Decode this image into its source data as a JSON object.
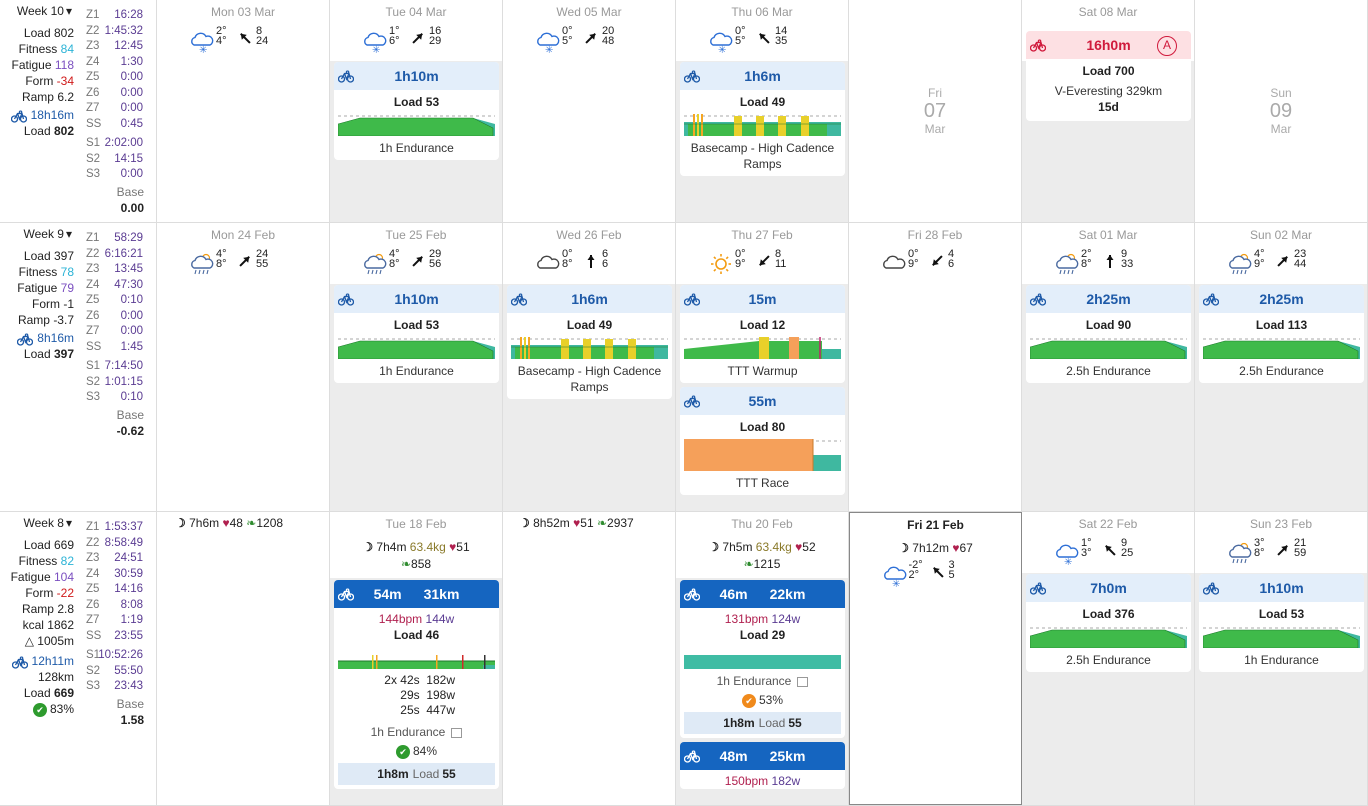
{
  "weeks": [
    {
      "title": "Week 10",
      "load": "802",
      "fitness": "84",
      "fatigue": "118",
      "form": "-34",
      "ramp": "6.2",
      "ride_time": "18h16m",
      "ride_load": "802",
      "zones": [
        [
          "Z1",
          "16:28"
        ],
        [
          "Z2",
          "1:45:32"
        ],
        [
          "Z3",
          "12:45"
        ],
        [
          "Z4",
          "1:30"
        ],
        [
          "Z5",
          "0:00"
        ],
        [
          "Z6",
          "0:00"
        ],
        [
          "Z7",
          "0:00"
        ],
        [
          "SS",
          "0:45"
        ]
      ],
      "s_zones": [
        [
          "S1",
          "2:02:00"
        ],
        [
          "S2",
          "14:15"
        ],
        [
          "S3",
          "0:00"
        ]
      ],
      "base_label": "Base",
      "base": "0.00",
      "days": [
        {
          "header": "Mon 03 Mar",
          "grey": false,
          "weather": {
            "icon": "snow-cloud-icon",
            "t_hi": "2°",
            "t_lo": "4°",
            "w1": "8",
            "w2": "24",
            "dir": "nw"
          }
        },
        {
          "header": "Tue 04 Mar",
          "grey": true,
          "weather": {
            "icon": "snow-cloud-icon",
            "t_hi": "1°",
            "t_lo": "6°",
            "w1": "16",
            "w2": "29",
            "dir": "ne"
          },
          "cards": [
            {
              "duration": "1h10m",
              "load": "Load 53",
              "name": "1h Endurance",
              "chart": "endurance"
            }
          ]
        },
        {
          "header": "Wed 05 Mar",
          "grey": false,
          "weather": {
            "icon": "snow-cloud-icon",
            "t_hi": "0°",
            "t_lo": "5°",
            "w1": "20",
            "w2": "48",
            "dir": "ne"
          }
        },
        {
          "header": "Thu 06 Mar",
          "grey": true,
          "weather": {
            "icon": "snow-cloud-icon",
            "t_hi": "0°",
            "t_lo": "5°",
            "w1": "14",
            "w2": "35",
            "dir": "nw"
          },
          "cards": [
            {
              "duration": "1h6m",
              "load": "Load 49",
              "name": "Basecamp - High Cadence Ramps",
              "chart": "basecamp"
            }
          ]
        },
        {
          "mid": {
            "a": "Fri",
            "b": "07",
            "c": "Mar"
          },
          "grey": false
        },
        {
          "header": "Sat 08 Mar",
          "grey": true,
          "race": {
            "duration": "16h0m",
            "badge": "A",
            "load": "Load 700",
            "name": "V-Everesting 329km",
            "days": "15d"
          }
        },
        {
          "mid": {
            "a": "Sun",
            "b": "09",
            "c": "Mar"
          },
          "grey": false
        }
      ]
    },
    {
      "title": "Week 9",
      "load": "397",
      "fitness": "78",
      "fatigue": "79",
      "form": "-1",
      "ramp": "-3.7",
      "ride_time": "8h16m",
      "ride_load": "397",
      "zones": [
        [
          "Z1",
          "58:29"
        ],
        [
          "Z2",
          "6:16:21"
        ],
        [
          "Z3",
          "13:45"
        ],
        [
          "Z4",
          "47:30"
        ],
        [
          "Z5",
          "0:10"
        ],
        [
          "Z6",
          "0:00"
        ],
        [
          "Z7",
          "0:00"
        ],
        [
          "SS",
          "1:45"
        ]
      ],
      "s_zones": [
        [
          "S1",
          "7:14:50"
        ],
        [
          "S2",
          "1:01:15"
        ],
        [
          "S3",
          "0:10"
        ]
      ],
      "base_label": "Base",
      "base": "-0.62",
      "days": [
        {
          "header": "Mon 24 Feb",
          "grey": false,
          "weather": {
            "icon": "rain-cloud-icon",
            "t_hi": "4°",
            "t_lo": "8°",
            "w1": "24",
            "w2": "55",
            "dir": "ne"
          }
        },
        {
          "header": "Tue 25 Feb",
          "grey": true,
          "weather": {
            "icon": "rain-cloud-icon",
            "t_hi": "4°",
            "t_lo": "8°",
            "w1": "29",
            "w2": "56",
            "dir": "ne"
          },
          "cards": [
            {
              "duration": "1h10m",
              "load": "Load 53",
              "name": "1h Endurance",
              "chart": "endurance"
            }
          ]
        },
        {
          "header": "Wed 26 Feb",
          "grey": true,
          "weather": {
            "icon": "cloud-icon",
            "t_hi": "0°",
            "t_lo": "8°",
            "w1": "6",
            "w2": "6",
            "dir": "n"
          },
          "cards": [
            {
              "duration": "1h6m",
              "load": "Load 49",
              "name": "Basecamp - High Cadence Ramps",
              "chart": "basecamp"
            }
          ]
        },
        {
          "header": "Thu 27 Feb",
          "grey": true,
          "weather": {
            "icon": "sun-icon",
            "t_hi": "0°",
            "t_lo": "9°",
            "w1": "8",
            "w2": "11",
            "dir": "sw"
          },
          "cards": [
            {
              "duration": "15m",
              "load": "Load 12",
              "name": "TTT Warmup",
              "chart": "warmup"
            },
            {
              "duration": "55m",
              "load": "Load 80",
              "name": "TTT Race",
              "chart": "race"
            }
          ]
        },
        {
          "header": "Fri 28 Feb",
          "grey": false,
          "weather": {
            "icon": "cloud-icon",
            "t_hi": "0°",
            "t_lo": "9°",
            "w1": "4",
            "w2": "6",
            "dir": "sw"
          }
        },
        {
          "header": "Sat 01 Mar",
          "grey": true,
          "weather": {
            "icon": "rain-cloud-icon",
            "t_hi": "2°",
            "t_lo": "8°",
            "w1": "9",
            "w2": "33",
            "dir": "n"
          },
          "cards": [
            {
              "duration": "2h25m",
              "load": "Load 90",
              "name": "2.5h Endurance",
              "chart": "long"
            }
          ]
        },
        {
          "header": "Sun 02 Mar",
          "grey": true,
          "weather": {
            "icon": "rain-cloud-icon",
            "t_hi": "4°",
            "t_lo": "9°",
            "w1": "23",
            "w2": "44",
            "dir": "ne"
          },
          "cards": [
            {
              "duration": "2h25m",
              "load": "Load 113",
              "name": "2.5h Endurance",
              "chart": "long"
            }
          ]
        }
      ]
    },
    {
      "title": "Week 8",
      "load": "669",
      "fitness": "82",
      "fatigue": "104",
      "form": "-22",
      "ramp": "2.8",
      "kcal": "1862",
      "elev": "1005m",
      "ride_time": "12h11m",
      "ride_dist": "128km",
      "ride_load": "669",
      "compliance": "83%",
      "zones": [
        [
          "Z1",
          "1:53:37"
        ],
        [
          "Z2",
          "8:58:49"
        ],
        [
          "Z3",
          "24:51"
        ],
        [
          "Z4",
          "30:59"
        ],
        [
          "Z5",
          "14:16"
        ],
        [
          "Z6",
          "8:08"
        ],
        [
          "Z7",
          "1:19"
        ],
        [
          "SS",
          "23:55"
        ]
      ],
      "s_zones": [
        [
          "S1",
          "10:52:26"
        ],
        [
          "S2",
          "55:50"
        ],
        [
          "S3",
          "23:43"
        ]
      ],
      "base_label": "Base",
      "base": "1.58",
      "days": [
        {
          "grey": false,
          "sleep": "7h6m",
          "hr": "48",
          "steps": "1208"
        },
        {
          "header": "Tue 18 Feb",
          "grey": true,
          "sleep": "7h4m",
          "kg": "63.4kg",
          "hr": "51",
          "steps": "858",
          "cards": [
            {
              "duration": "54m",
              "dist": "31km",
              "bpm": "144bpm",
              "watts": "144w",
              "load": "Load 46",
              "chart": "done1",
              "intervals": [
                "2x 42s  182w",
                "29s  198w",
                "25s  447w"
              ],
              "name": "1h Endurance",
              "compliance": "84%",
              "ok": true,
              "plan_time": "1h8m",
              "plan_load": "Load",
              "plan_load_v": "55"
            }
          ]
        },
        {
          "grey": false,
          "sleep": "8h52m",
          "hr": "51",
          "steps": "2937"
        },
        {
          "header": "Thu 20 Feb",
          "grey": true,
          "sleep": "7h5m",
          "kg": "63.4kg",
          "hr": "52",
          "steps": "1215",
          "cards": [
            {
              "duration": "46m",
              "dist": "22km",
              "bpm": "131bpm",
              "watts": "124w",
              "load": "Load 29",
              "chart": "done2",
              "name": "1h Endurance",
              "compliance": "53%",
              "ok": false,
              "plan_time": "1h8m",
              "plan_load": "Load",
              "plan_load_v": "55"
            },
            {
              "duration": "48m",
              "dist": "25km",
              "bpm": "150bpm",
              "watts": "182w"
            }
          ]
        },
        {
          "header": "Fri 21 Feb",
          "today": true,
          "grey": false,
          "sleep": "7h12m",
          "hr": "67",
          "weather": {
            "icon": "snow-cloud-icon",
            "t_hi": "-2°",
            "t_lo": "2°",
            "w1": "3",
            "w2": "5",
            "dir": "nw"
          }
        },
        {
          "header": "Sat 22 Feb",
          "grey": true,
          "weather": {
            "icon": "snow-cloud-icon",
            "t_hi": "1°",
            "t_lo": "3°",
            "w1": "9",
            "w2": "25",
            "dir": "nw"
          },
          "cards": [
            {
              "duration": "7h0m",
              "load": "Load 376",
              "name": "2.5h Endurance",
              "chart": "long"
            }
          ]
        },
        {
          "header": "Sun 23 Feb",
          "grey": true,
          "weather": {
            "icon": "rain-cloud-icon",
            "t_hi": "3°",
            "t_lo": "8°",
            "w1": "21",
            "w2": "59",
            "dir": "ne"
          },
          "cards": [
            {
              "duration": "1h10m",
              "load": "Load 53",
              "name": "1h Endurance",
              "chart": "endurance"
            }
          ]
        }
      ]
    }
  ],
  "labels": {
    "load": "Load",
    "fitness": "Fitness",
    "fatigue": "Fatigue",
    "form": "Form",
    "ramp": "Ramp",
    "kcal": "kcal"
  },
  "colors": {
    "accent": "#1e5aa8",
    "fitness": "#2bb3d6",
    "fatigue": "#7b4fc0",
    "form_neg": "#d01a1a",
    "form_pos": "#2e9b2e",
    "zone": "#5a3b92"
  }
}
